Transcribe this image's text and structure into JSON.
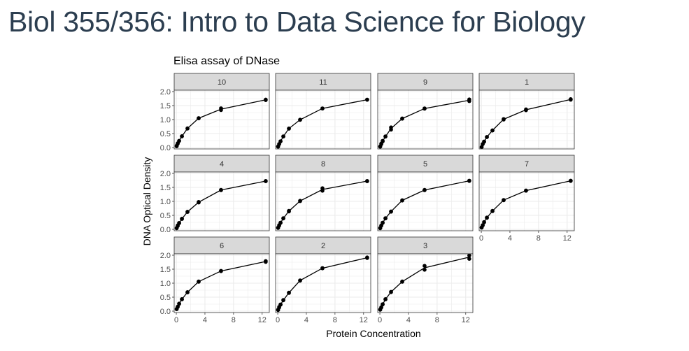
{
  "page": {
    "title": "Biol 355/356: Intro to Data Science for Biology"
  },
  "chart_data": {
    "type": "line",
    "title": "Elisa assay of DNase",
    "xlabel": "Protein Concentration",
    "ylabel": "DNA Optical Density",
    "xlim": [
      -0.3,
      13
    ],
    "ylim": [
      -0.05,
      2.05
    ],
    "xticks": [
      0,
      4,
      8,
      12
    ],
    "yticks": [
      0.0,
      0.5,
      1.0,
      1.5,
      2.0
    ],
    "ytick_labels": [
      "0.0",
      "0.5",
      "1.0",
      "1.5",
      "2.0"
    ],
    "grid": true,
    "markers": true,
    "colors": {
      "strip": "#d9d9d9",
      "line": "#000000",
      "grid": "#ebebeb",
      "panel_border": "#333333"
    },
    "panels": [
      {
        "label": "10",
        "points": [
          [
            0.04883,
            0.045
          ],
          [
            0.04883,
            0.067
          ],
          [
            0.1953,
            0.135
          ],
          [
            0.1953,
            0.151
          ],
          [
            0.3906,
            0.236
          ],
          [
            0.3906,
            0.238
          ],
          [
            0.7812,
            0.398
          ],
          [
            0.7812,
            0.405
          ],
          [
            1.5625,
            0.677
          ],
          [
            1.5625,
            0.686
          ],
          [
            3.125,
            1.051
          ],
          [
            3.125,
            1.044
          ],
          [
            6.25,
            1.34
          ],
          [
            6.25,
            1.403
          ],
          [
            12.5,
            1.696
          ],
          [
            12.5,
            1.713
          ]
        ]
      },
      {
        "label": "11",
        "points": [
          [
            0.04883,
            0.03
          ],
          [
            0.04883,
            0.04
          ],
          [
            0.1953,
            0.122
          ],
          [
            0.1953,
            0.128
          ],
          [
            0.3906,
            0.222
          ],
          [
            0.3906,
            0.225
          ],
          [
            0.7812,
            0.395
          ],
          [
            0.7812,
            0.4
          ],
          [
            1.5625,
            0.674
          ],
          [
            1.5625,
            0.68
          ],
          [
            3.125,
            0.99
          ],
          [
            3.125,
            0.995
          ],
          [
            6.25,
            1.4
          ],
          [
            6.25,
            1.395
          ],
          [
            12.5,
            1.71
          ],
          [
            12.5,
            1.712
          ]
        ]
      },
      {
        "label": "9",
        "points": [
          [
            0.04883,
            0.03
          ],
          [
            0.04883,
            0.04
          ],
          [
            0.1953,
            0.12
          ],
          [
            0.1953,
            0.14
          ],
          [
            0.3906,
            0.22
          ],
          [
            0.3906,
            0.24
          ],
          [
            0.7812,
            0.39
          ],
          [
            0.7812,
            0.4
          ],
          [
            1.5625,
            0.64
          ],
          [
            1.5625,
            0.72
          ],
          [
            3.125,
            1.03
          ],
          [
            3.125,
            1.04
          ],
          [
            6.25,
            1.39
          ],
          [
            6.25,
            1.4
          ],
          [
            12.5,
            1.66
          ],
          [
            12.5,
            1.72
          ]
        ]
      },
      {
        "label": "1",
        "points": [
          [
            0.04883,
            0.017
          ],
          [
            0.04883,
            0.018
          ],
          [
            0.1953,
            0.121
          ],
          [
            0.1953,
            0.124
          ],
          [
            0.3906,
            0.206
          ],
          [
            0.3906,
            0.215
          ],
          [
            0.7812,
            0.377
          ],
          [
            0.7812,
            0.374
          ],
          [
            1.5625,
            0.614
          ],
          [
            1.5625,
            0.609
          ],
          [
            3.125,
            1.019
          ],
          [
            3.125,
            1.001
          ],
          [
            6.25,
            1.334
          ],
          [
            6.25,
            1.364
          ],
          [
            12.5,
            1.73
          ],
          [
            12.5,
            1.71
          ]
        ]
      },
      {
        "label": "4",
        "points": [
          [
            0.04883,
            0.04
          ],
          [
            0.04883,
            0.05
          ],
          [
            0.1953,
            0.12
          ],
          [
            0.1953,
            0.14
          ],
          [
            0.3906,
            0.22
          ],
          [
            0.3906,
            0.23
          ],
          [
            0.7812,
            0.37
          ],
          [
            0.7812,
            0.38
          ],
          [
            1.5625,
            0.62
          ],
          [
            1.5625,
            0.63
          ],
          [
            3.125,
            0.96
          ],
          [
            3.125,
            0.98
          ],
          [
            6.25,
            1.4
          ],
          [
            6.25,
            1.41
          ],
          [
            12.5,
            1.72
          ],
          [
            12.5,
            1.73
          ]
        ]
      },
      {
        "label": "8",
        "points": [
          [
            0.04883,
            0.05
          ],
          [
            0.04883,
            0.06
          ],
          [
            0.1953,
            0.13
          ],
          [
            0.1953,
            0.15
          ],
          [
            0.3906,
            0.23
          ],
          [
            0.3906,
            0.24
          ],
          [
            0.7812,
            0.39
          ],
          [
            0.7812,
            0.4
          ],
          [
            1.5625,
            0.64
          ],
          [
            1.5625,
            0.66
          ],
          [
            3.125,
            1.01
          ],
          [
            3.125,
            1.02
          ],
          [
            6.25,
            1.38
          ],
          [
            6.25,
            1.47
          ],
          [
            12.5,
            1.72
          ],
          [
            12.5,
            1.73
          ]
        ]
      },
      {
        "label": "5",
        "points": [
          [
            0.04883,
            0.04
          ],
          [
            0.04883,
            0.05
          ],
          [
            0.1953,
            0.13
          ],
          [
            0.1953,
            0.14
          ],
          [
            0.3906,
            0.23
          ],
          [
            0.3906,
            0.24
          ],
          [
            0.7812,
            0.39
          ],
          [
            0.7812,
            0.4
          ],
          [
            1.5625,
            0.63
          ],
          [
            1.5625,
            0.64
          ],
          [
            3.125,
            1.03
          ],
          [
            3.125,
            1.04
          ],
          [
            6.25,
            1.4
          ],
          [
            6.25,
            1.41
          ],
          [
            12.5,
            1.73
          ],
          [
            12.5,
            1.74
          ]
        ]
      },
      {
        "label": "7",
        "points": [
          [
            0.04883,
            0.06
          ],
          [
            0.04883,
            0.07
          ],
          [
            0.1953,
            0.14
          ],
          [
            0.1953,
            0.15
          ],
          [
            0.3906,
            0.25
          ],
          [
            0.3906,
            0.26
          ],
          [
            0.7812,
            0.41
          ],
          [
            0.7812,
            0.42
          ],
          [
            1.5625,
            0.65
          ],
          [
            1.5625,
            0.66
          ],
          [
            3.125,
            1.04
          ],
          [
            3.125,
            1.05
          ],
          [
            6.25,
            1.38
          ],
          [
            6.25,
            1.39
          ],
          [
            12.5,
            1.73
          ],
          [
            12.5,
            1.74
          ]
        ]
      },
      {
        "label": "6",
        "points": [
          [
            0.04883,
            0.07
          ],
          [
            0.04883,
            0.08
          ],
          [
            0.1953,
            0.15
          ],
          [
            0.1953,
            0.16
          ],
          [
            0.3906,
            0.26
          ],
          [
            0.3906,
            0.27
          ],
          [
            0.7812,
            0.42
          ],
          [
            0.7812,
            0.43
          ],
          [
            1.5625,
            0.67
          ],
          [
            1.5625,
            0.68
          ],
          [
            3.125,
            1.05
          ],
          [
            3.125,
            1.06
          ],
          [
            6.25,
            1.43
          ],
          [
            6.25,
            1.44
          ],
          [
            12.5,
            1.76
          ],
          [
            12.5,
            1.79
          ]
        ]
      },
      {
        "label": "2",
        "points": [
          [
            0.04883,
            0.04
          ],
          [
            0.04883,
            0.05
          ],
          [
            0.1953,
            0.13
          ],
          [
            0.1953,
            0.15
          ],
          [
            0.3906,
            0.23
          ],
          [
            0.3906,
            0.24
          ],
          [
            0.7812,
            0.39
          ],
          [
            0.7812,
            0.4
          ],
          [
            1.5625,
            0.65
          ],
          [
            1.5625,
            0.66
          ],
          [
            3.125,
            1.09
          ],
          [
            3.125,
            1.1
          ],
          [
            6.25,
            1.53
          ],
          [
            6.25,
            1.54
          ],
          [
            12.5,
            1.9
          ],
          [
            12.5,
            1.92
          ]
        ]
      },
      {
        "label": "3",
        "points": [
          [
            0.04883,
            0.05
          ],
          [
            0.04883,
            0.06
          ],
          [
            0.1953,
            0.13
          ],
          [
            0.1953,
            0.14
          ],
          [
            0.3906,
            0.24
          ],
          [
            0.3906,
            0.25
          ],
          [
            0.7812,
            0.42
          ],
          [
            0.7812,
            0.43
          ],
          [
            1.5625,
            0.68
          ],
          [
            1.5625,
            0.69
          ],
          [
            3.125,
            1.05
          ],
          [
            3.125,
            1.06
          ],
          [
            6.25,
            1.48
          ],
          [
            6.25,
            1.62
          ],
          [
            12.5,
            1.87
          ],
          [
            12.5,
            1.99
          ]
        ]
      }
    ]
  }
}
